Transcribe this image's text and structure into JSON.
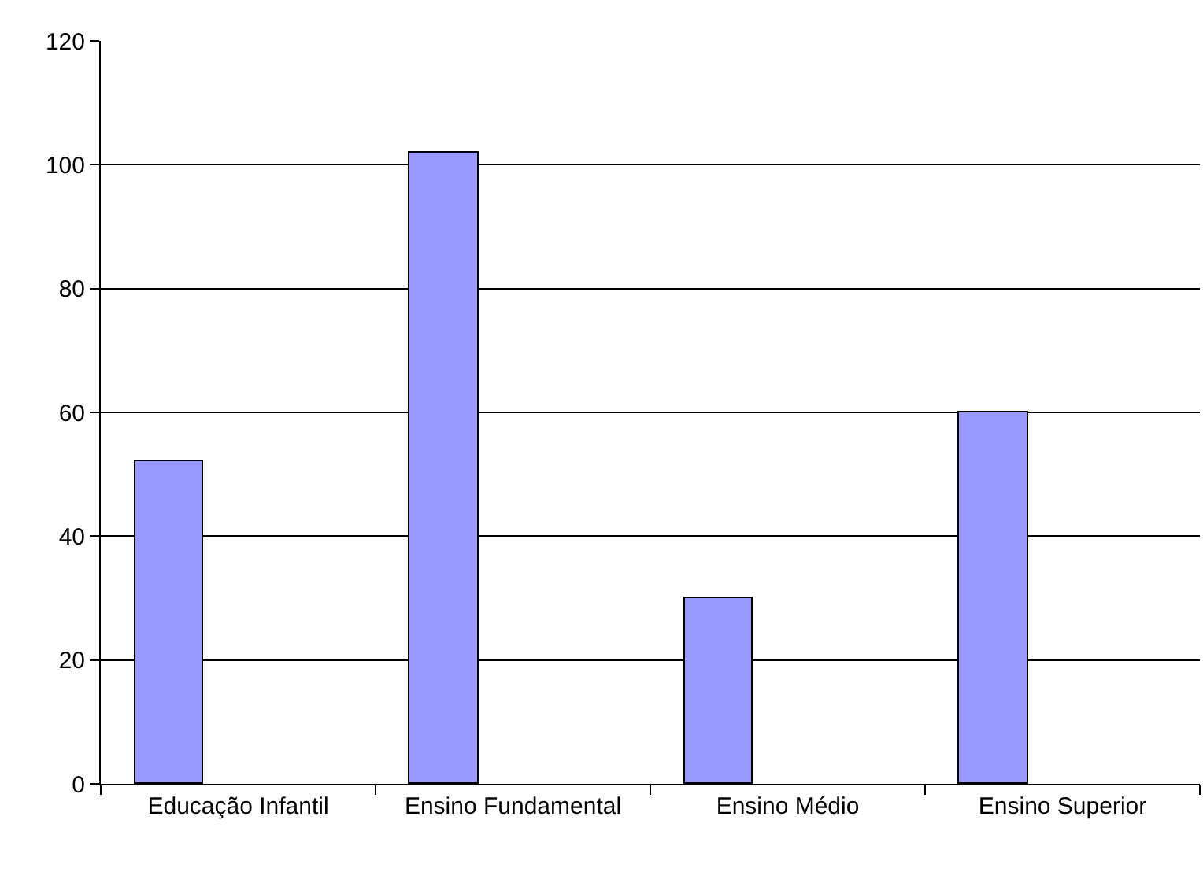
{
  "chart_data": {
    "type": "bar",
    "categories": [
      "Educação Infantil",
      "Ensino Fundamental",
      "Ensino Médio",
      "Ensino Superior"
    ],
    "values": [
      52,
      102,
      30,
      60
    ],
    "color": "#9999ff",
    "ylim": [
      0,
      120
    ],
    "yticks": [
      0,
      20,
      40,
      60,
      80,
      100,
      120
    ],
    "grid": "y",
    "legend": false
  }
}
